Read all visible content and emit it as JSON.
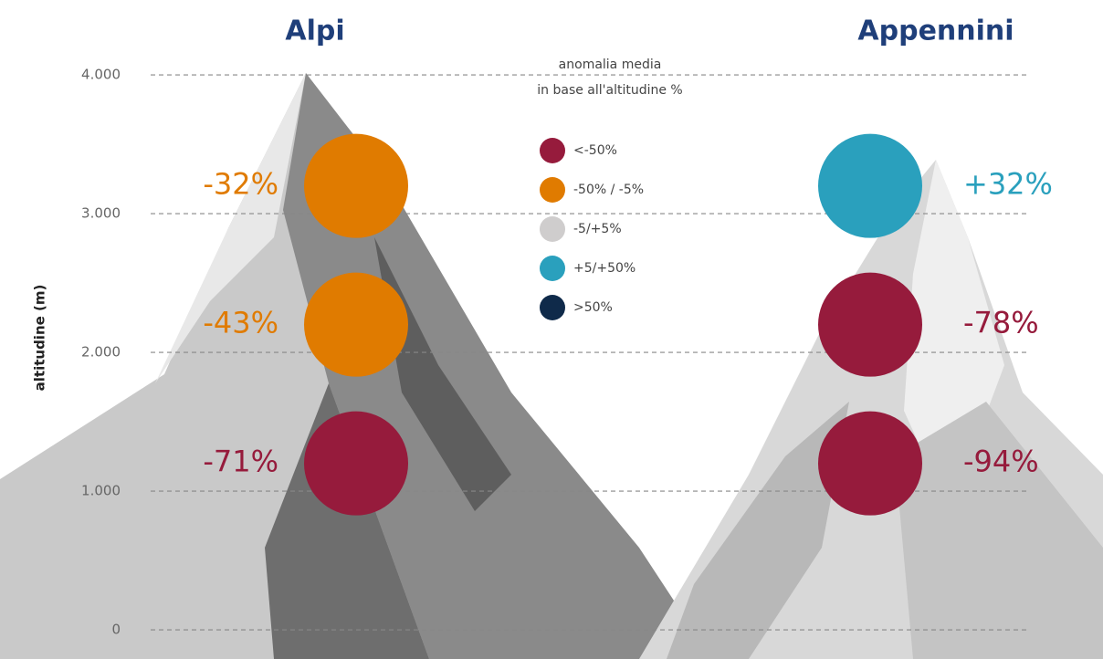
{
  "chart_data": {
    "type": "altitude-dots",
    "ylabel": "altitudine (m)",
    "legend_title": [
      "anomalia media",
      "in base all'altitudine %"
    ],
    "legend": [
      {
        "label": "<-50%",
        "color": "#961b3c"
      },
      {
        "label": "-50% / -5%",
        "color": "#e07b00"
      },
      {
        "label": "-5/+5%",
        "color": "#cfcdcd"
      },
      {
        "label": "+5/+50%",
        "color": "#2aa0bd"
      },
      {
        "label": ">50%",
        "color": "#0f2a4a"
      }
    ],
    "ylim": [
      -210,
      4540
    ],
    "yticks": [
      0,
      {
        "value": 1000,
        "label": "1.000"
      },
      {
        "value": 2000,
        "label": "2.000"
      },
      {
        "value": 3000,
        "label": "3.000"
      },
      {
        "value": 4000,
        "label": "4.000"
      }
    ],
    "grid": true,
    "series": [
      {
        "name": "Alpi",
        "altitudes": [
          3200,
          2200,
          1200
        ],
        "values": [
          -32,
          -43,
          -71
        ],
        "value_labels": [
          "-32%",
          "-43%",
          "-71%"
        ],
        "colors": [
          "#e07b00",
          "#e07b00",
          "#961b3c"
        ]
      },
      {
        "name": "Appennini",
        "altitudes": [
          3200,
          2200,
          1200
        ],
        "values": [
          32,
          -78,
          -94
        ],
        "value_labels": [
          "+32%",
          "-78%",
          "-94%"
        ],
        "colors": [
          "#2aa0bd",
          "#961b3c",
          "#961b3c"
        ]
      }
    ]
  }
}
